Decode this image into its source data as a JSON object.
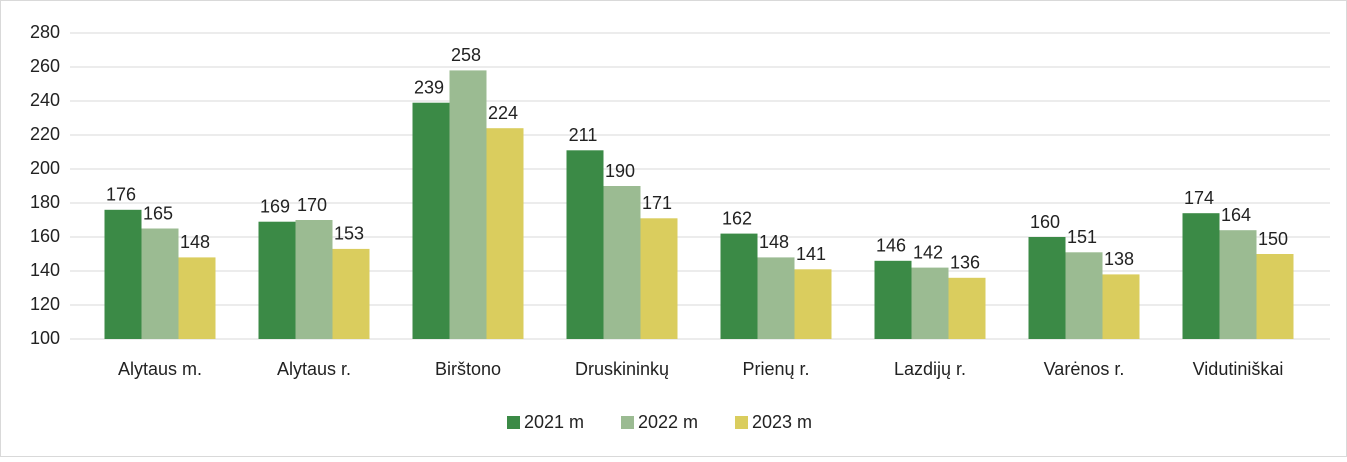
{
  "chart_data": {
    "type": "bar",
    "categories": [
      "Alytaus m.",
      "Alytaus r.",
      "Birštono",
      "Druskininkų",
      "Prienų r.",
      "Lazdijų r.",
      "Varėnos r.",
      "Vidutiniškai"
    ],
    "series": [
      {
        "name": "2021 m",
        "color": "#3b8a46",
        "values": [
          176,
          169,
          239,
          211,
          162,
          146,
          160,
          174
        ]
      },
      {
        "name": "2022 m",
        "color": "#9bbb92",
        "values": [
          165,
          170,
          258,
          190,
          148,
          142,
          151,
          164
        ]
      },
      {
        "name": "2023 m",
        "color": "#dacd5e",
        "values": [
          148,
          153,
          224,
          171,
          141,
          136,
          138,
          150
        ]
      }
    ],
    "ylim": [
      100,
      280
    ],
    "yticks": [
      100,
      120,
      140,
      160,
      180,
      200,
      220,
      240,
      260,
      280
    ],
    "grid": true,
    "legend": "bottom"
  }
}
